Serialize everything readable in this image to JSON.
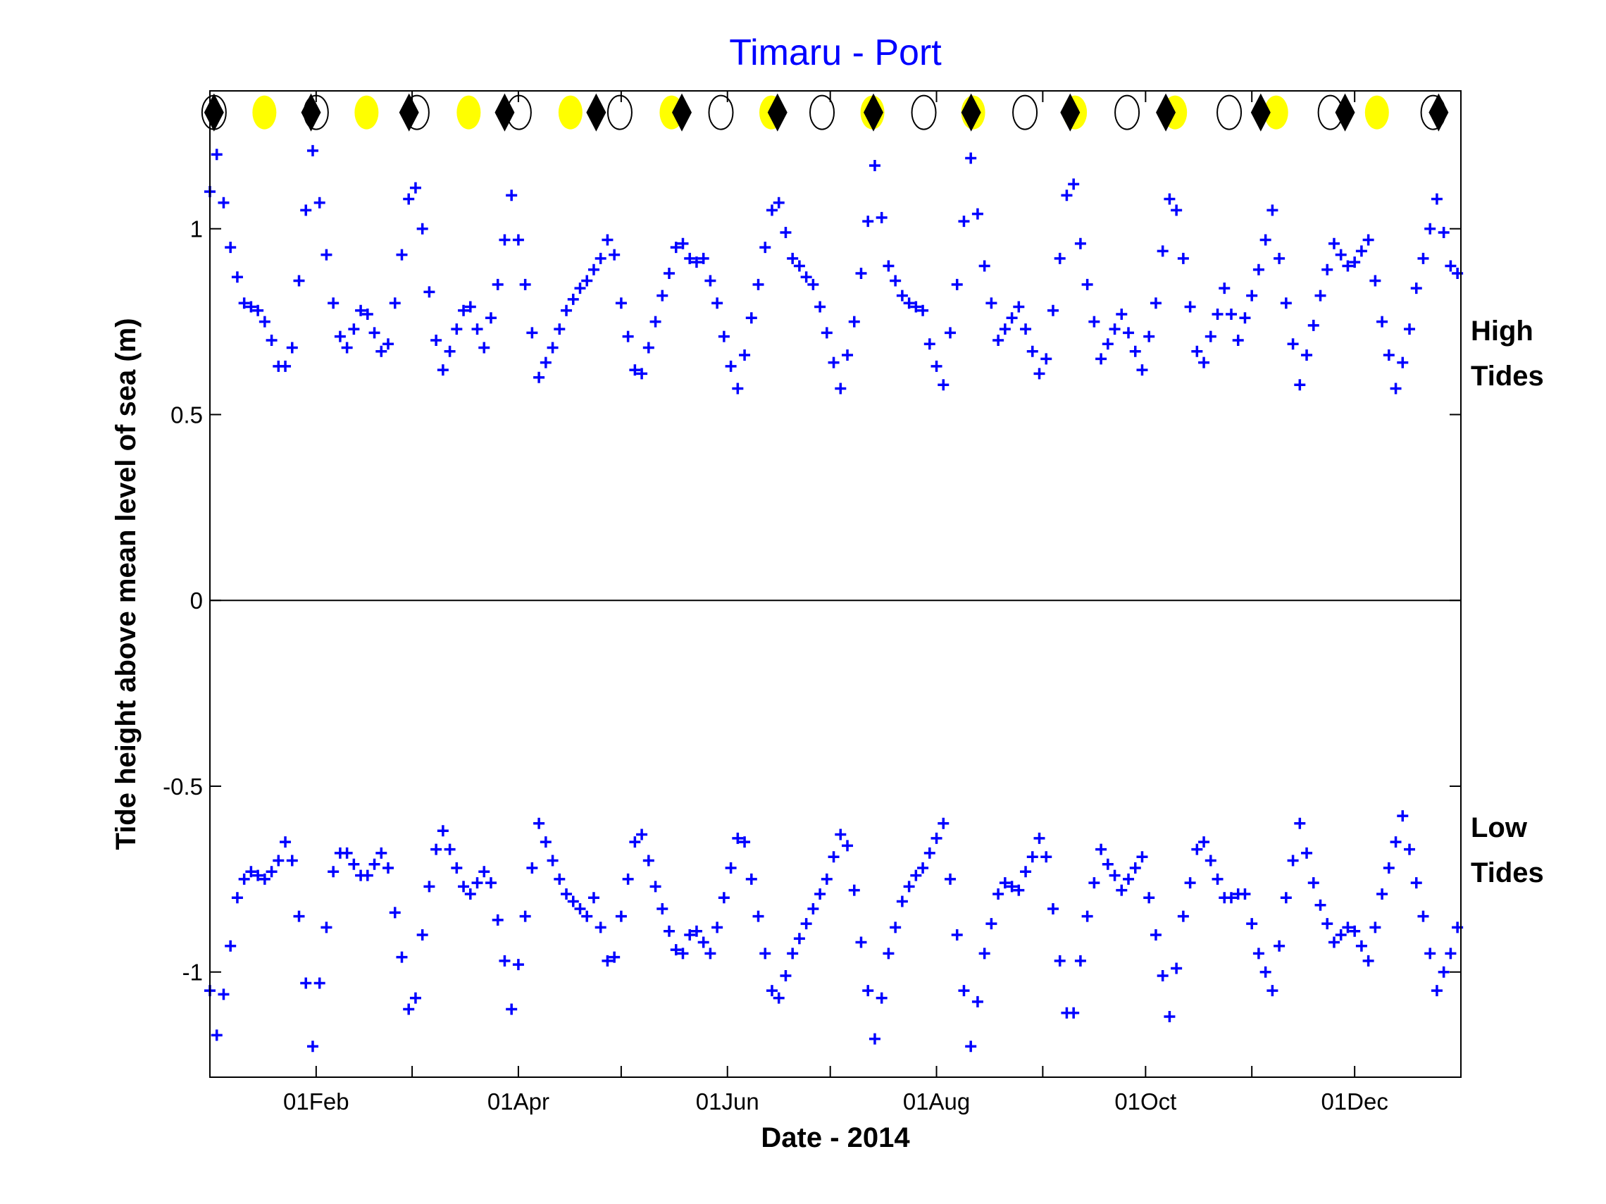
{
  "chart_data": {
    "type": "scatter",
    "title": "Timaru - Port",
    "xlabel": "Date - 2014",
    "ylabel": "Tide height above mean level of sea (m)",
    "x_unit": "day of year 2014 (0 = 01 Jan)",
    "xlim": [
      0,
      365
    ],
    "ylim": [
      -1.283,
      1.371
    ],
    "x_ticks": [
      0,
      31,
      59,
      90,
      120,
      151,
      181,
      212,
      243,
      273,
      304,
      334,
      365
    ],
    "x_tick_labels": [
      {
        "day": 31,
        "label": "01Feb"
      },
      {
        "day": 90,
        "label": "01Apr"
      },
      {
        "day": 151,
        "label": "01Jun"
      },
      {
        "day": 212,
        "label": "01Aug"
      },
      {
        "day": 273,
        "label": "01Oct"
      },
      {
        "day": 334,
        "label": "01Dec"
      }
    ],
    "y_ticks": [
      -1,
      -0.5,
      0,
      0.5,
      1
    ],
    "y_tick_labels": [
      "-1",
      "-0.5",
      "0",
      "0.5",
      "1"
    ],
    "annotations": {
      "high": [
        "High",
        "Tides"
      ],
      "low": [
        "Low",
        "Tides"
      ]
    },
    "colors": {
      "title": "#0000ff",
      "tide": "#0000ff",
      "full_moon": "#ffff00",
      "perigee": "#000000"
    },
    "series": [
      {
        "name": "High tides",
        "marker": "plus",
        "x_step_days": 2,
        "x_start": 0,
        "values": [
          1.1,
          1.2,
          1.07,
          0.95,
          0.87,
          0.8,
          0.79,
          0.78,
          0.75,
          0.7,
          0.63,
          0.63,
          0.68,
          0.86,
          1.05,
          1.21,
          1.07,
          0.93,
          0.8,
          0.71,
          0.68,
          0.73,
          0.78,
          0.77,
          0.72,
          0.67,
          0.69,
          0.8,
          0.93,
          1.08,
          1.11,
          1.0,
          0.83,
          0.7,
          0.62,
          0.67,
          0.73,
          0.78,
          0.79,
          0.73,
          0.68,
          0.76,
          0.85,
          0.97,
          1.09,
          0.97,
          0.85,
          0.72,
          0.6,
          0.64,
          0.68,
          0.73,
          0.78,
          0.81,
          0.84,
          0.86,
          0.89,
          0.92,
          0.97,
          0.93,
          0.8,
          0.71,
          0.62,
          0.61,
          0.68,
          0.75,
          0.82,
          0.88,
          0.95,
          0.96,
          0.92,
          0.91,
          0.92,
          0.86,
          0.8,
          0.71,
          0.63,
          0.57,
          0.66,
          0.76,
          0.85,
          0.95,
          1.05,
          1.07,
          0.99,
          0.92,
          0.9,
          0.87,
          0.85,
          0.79,
          0.72,
          0.64,
          0.57,
          0.66,
          0.75,
          0.88,
          1.02,
          1.17,
          1.03,
          0.9,
          0.86,
          0.82,
          0.8,
          0.79,
          0.78,
          0.69,
          0.63,
          0.58,
          0.72,
          0.85,
          1.02,
          1.19,
          1.04,
          0.9,
          0.8,
          0.7,
          0.73,
          0.76,
          0.79,
          0.73,
          0.67,
          0.61,
          0.65,
          0.78,
          0.92,
          1.09,
          1.12,
          0.96,
          0.85,
          0.75,
          0.65,
          0.69,
          0.73,
          0.77,
          0.72,
          0.67,
          0.62,
          0.71,
          0.8,
          0.94,
          1.08,
          1.05,
          0.92,
          0.79,
          0.67,
          0.64,
          0.71,
          0.77,
          0.84,
          0.77,
          0.7,
          0.76,
          0.82,
          0.89,
          0.97,
          1.05,
          0.92,
          0.8,
          0.69,
          0.58,
          0.66,
          0.74,
          0.82,
          0.89,
          0.96,
          0.93,
          0.9,
          0.91,
          0.94,
          0.97,
          0.86,
          0.75,
          0.66,
          0.57,
          0.64,
          0.73,
          0.84,
          0.92,
          1.0,
          1.08,
          0.99,
          0.9,
          0.88
        ]
      },
      {
        "name": "Low tides",
        "marker": "plus",
        "x_step_days": 2,
        "x_start": 0,
        "values": [
          -1.05,
          -1.17,
          -1.06,
          -0.93,
          -0.8,
          -0.75,
          -0.73,
          -0.74,
          -0.75,
          -0.73,
          -0.7,
          -0.65,
          -0.7,
          -0.85,
          -1.03,
          -1.2,
          -1.03,
          -0.88,
          -0.73,
          -0.68,
          -0.68,
          -0.71,
          -0.74,
          -0.74,
          -0.71,
          -0.68,
          -0.72,
          -0.84,
          -0.96,
          -1.1,
          -1.07,
          -0.9,
          -0.77,
          -0.67,
          -0.62,
          -0.67,
          -0.72,
          -0.77,
          -0.79,
          -0.76,
          -0.73,
          -0.76,
          -0.86,
          -0.97,
          -1.1,
          -0.98,
          -0.85,
          -0.72,
          -0.6,
          -0.65,
          -0.7,
          -0.75,
          -0.79,
          -0.81,
          -0.83,
          -0.85,
          -0.8,
          -0.88,
          -0.97,
          -0.96,
          -0.85,
          -0.75,
          -0.65,
          -0.63,
          -0.7,
          -0.77,
          -0.83,
          -0.89,
          -0.94,
          -0.95,
          -0.9,
          -0.89,
          -0.92,
          -0.95,
          -0.88,
          -0.8,
          -0.72,
          -0.64,
          -0.65,
          -0.75,
          -0.85,
          -0.95,
          -1.05,
          -1.07,
          -1.01,
          -0.95,
          -0.91,
          -0.87,
          -0.83,
          -0.79,
          -0.75,
          -0.69,
          -0.63,
          -0.66,
          -0.78,
          -0.92,
          -1.05,
          -1.18,
          -1.07,
          -0.95,
          -0.88,
          -0.81,
          -0.77,
          -0.74,
          -0.72,
          -0.68,
          -0.64,
          -0.6,
          -0.75,
          -0.9,
          -1.05,
          -1.2,
          -1.08,
          -0.95,
          -0.87,
          -0.79,
          -0.76,
          -0.77,
          -0.78,
          -0.73,
          -0.69,
          -0.64,
          -0.69,
          -0.83,
          -0.97,
          -1.11,
          -1.11,
          -0.97,
          -0.85,
          -0.76,
          -0.67,
          -0.71,
          -0.74,
          -0.78,
          -0.75,
          -0.72,
          -0.69,
          -0.8,
          -0.9,
          -1.01,
          -1.12,
          -0.99,
          -0.85,
          -0.76,
          -0.67,
          -0.65,
          -0.7,
          -0.75,
          -0.8,
          -0.8,
          -0.79,
          -0.79,
          -0.87,
          -0.95,
          -1.0,
          -1.05,
          -0.93,
          -0.8,
          -0.7,
          -0.6,
          -0.68,
          -0.76,
          -0.82,
          -0.87,
          -0.92,
          -0.9,
          -0.88,
          -0.89,
          -0.93,
          -0.97,
          -0.88,
          -0.79,
          -0.72,
          -0.65,
          -0.58,
          -0.67,
          -0.76,
          -0.85,
          -0.95,
          -1.05,
          -1.0,
          -0.95,
          -0.88
        ]
      }
    ],
    "moon_markers": {
      "y": 1.313,
      "full_moon_days": [
        15.9,
        45.7,
        75.5,
        105.2,
        134.7,
        163.8,
        193.3,
        222.7,
        252.4,
        281.6,
        311.1,
        340.5
      ],
      "new_moon_days": [
        1.2,
        31.0,
        60.4,
        90.2,
        119.6,
        149.1,
        178.6,
        208.3,
        237.8,
        267.6,
        297.4,
        326.9,
        356.9
      ],
      "perigee_days": [
        1.2,
        29.5,
        58.1,
        86.0,
        112.7,
        137.7,
        165.6,
        193.6,
        222.1,
        251.0,
        278.9,
        306.6,
        331.2,
        358.5
      ]
    }
  }
}
